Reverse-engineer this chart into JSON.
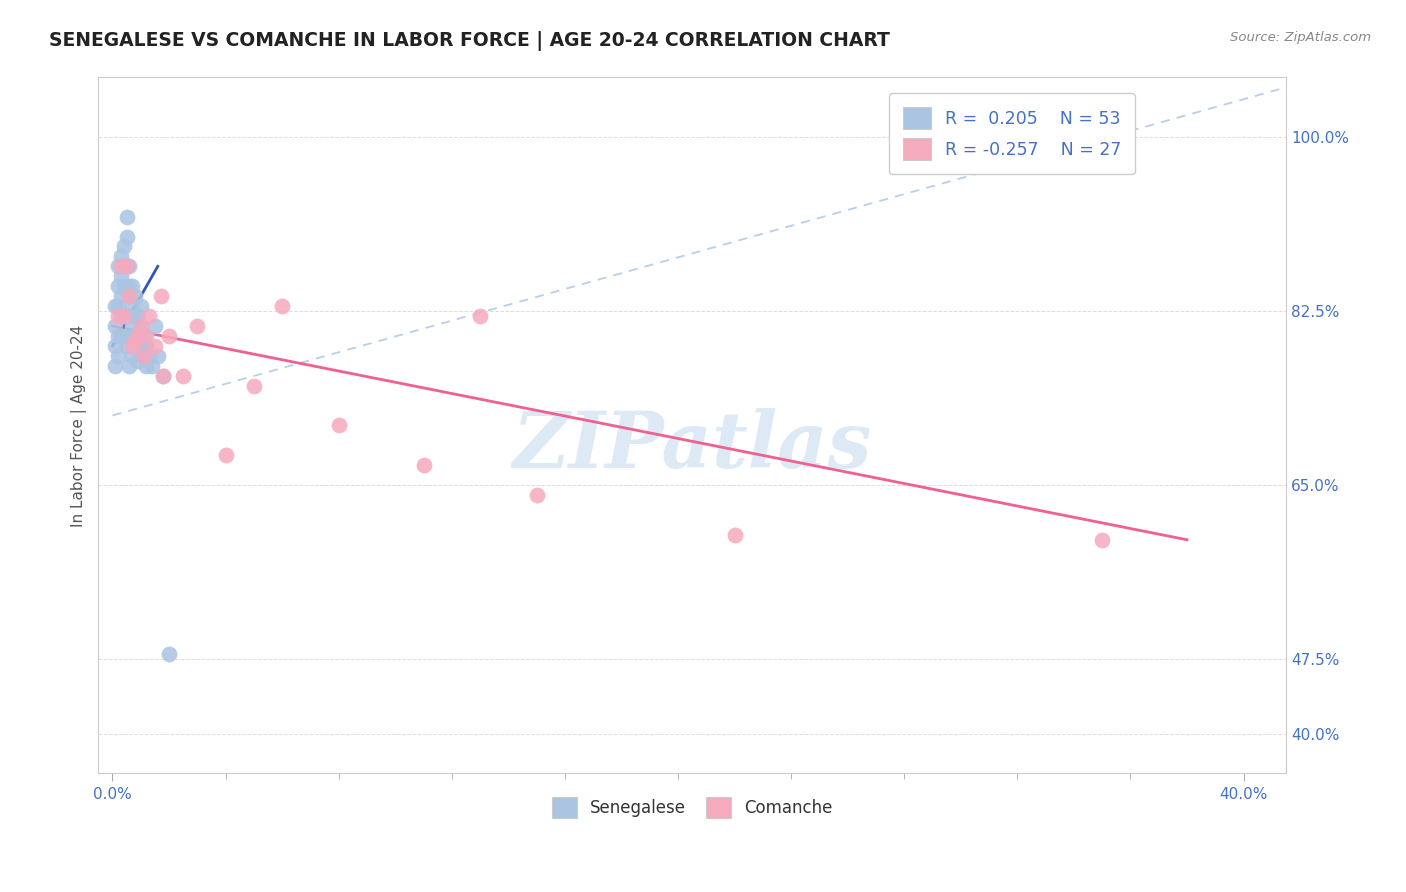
{
  "title": "SENEGALESE VS COMANCHE IN LABOR FORCE | AGE 20-24 CORRELATION CHART",
  "source": "Source: ZipAtlas.com",
  "ylabel": "In Labor Force | Age 20-24",
  "xlim": [
    -0.005,
    0.415
  ],
  "ylim": [
    0.36,
    1.06
  ],
  "ytick_display": [
    0.4,
    0.475,
    0.65,
    0.825,
    1.0
  ],
  "ytick_display_labels": [
    "40.0%",
    "47.5%",
    "65.0%",
    "82.5%",
    "100.0%"
  ],
  "senegalese_R": 0.205,
  "senegalese_N": 53,
  "comanche_R": -0.257,
  "comanche_N": 27,
  "senegalese_color": "#aac4e2",
  "comanche_color": "#f5aabe",
  "senegalese_line_color": "#3355bb",
  "comanche_line_color": "#f06090",
  "dashed_line_color": "#b8cfe8",
  "watermark_color": "#cfe0f0",
  "senegalese_x": [
    0.001,
    0.001,
    0.001,
    0.001,
    0.002,
    0.002,
    0.002,
    0.002,
    0.002,
    0.003,
    0.003,
    0.003,
    0.003,
    0.003,
    0.004,
    0.004,
    0.004,
    0.004,
    0.004,
    0.005,
    0.005,
    0.005,
    0.005,
    0.005,
    0.005,
    0.006,
    0.006,
    0.006,
    0.006,
    0.006,
    0.007,
    0.007,
    0.007,
    0.007,
    0.008,
    0.008,
    0.008,
    0.009,
    0.009,
    0.009,
    0.01,
    0.01,
    0.01,
    0.011,
    0.011,
    0.012,
    0.012,
    0.013,
    0.014,
    0.015,
    0.016,
    0.018,
    0.02
  ],
  "senegalese_y": [
    0.83,
    0.81,
    0.79,
    0.77,
    0.87,
    0.85,
    0.83,
    0.8,
    0.78,
    0.88,
    0.86,
    0.84,
    0.82,
    0.8,
    0.89,
    0.87,
    0.85,
    0.82,
    0.8,
    0.92,
    0.9,
    0.87,
    0.845,
    0.82,
    0.79,
    0.87,
    0.85,
    0.82,
    0.8,
    0.77,
    0.85,
    0.83,
    0.81,
    0.78,
    0.84,
    0.82,
    0.8,
    0.82,
    0.8,
    0.775,
    0.83,
    0.81,
    0.79,
    0.8,
    0.78,
    0.79,
    0.77,
    0.78,
    0.77,
    0.81,
    0.78,
    0.76,
    0.48
  ],
  "comanche_x": [
    0.002,
    0.003,
    0.004,
    0.005,
    0.006,
    0.007,
    0.008,
    0.009,
    0.01,
    0.011,
    0.012,
    0.013,
    0.015,
    0.017,
    0.018,
    0.02,
    0.025,
    0.03,
    0.04,
    0.05,
    0.06,
    0.08,
    0.11,
    0.13,
    0.15,
    0.22,
    0.35
  ],
  "comanche_y": [
    0.82,
    0.87,
    0.82,
    0.87,
    0.84,
    0.79,
    0.795,
    0.8,
    0.81,
    0.78,
    0.8,
    0.82,
    0.79,
    0.84,
    0.76,
    0.8,
    0.76,
    0.81,
    0.68,
    0.75,
    0.83,
    0.71,
    0.67,
    0.82,
    0.64,
    0.6,
    0.595
  ],
  "sen_line_x0": 0.0,
  "sen_line_x1": 0.016,
  "sen_line_y0": 0.79,
  "sen_line_y1": 0.87,
  "com_line_x0": 0.0,
  "com_line_x1": 0.38,
  "com_line_y0": 0.81,
  "com_line_y1": 0.595,
  "dash_line_x0": 0.0,
  "dash_line_x1": 0.415,
  "dash_line_y0": 0.72,
  "dash_line_y1": 1.05
}
